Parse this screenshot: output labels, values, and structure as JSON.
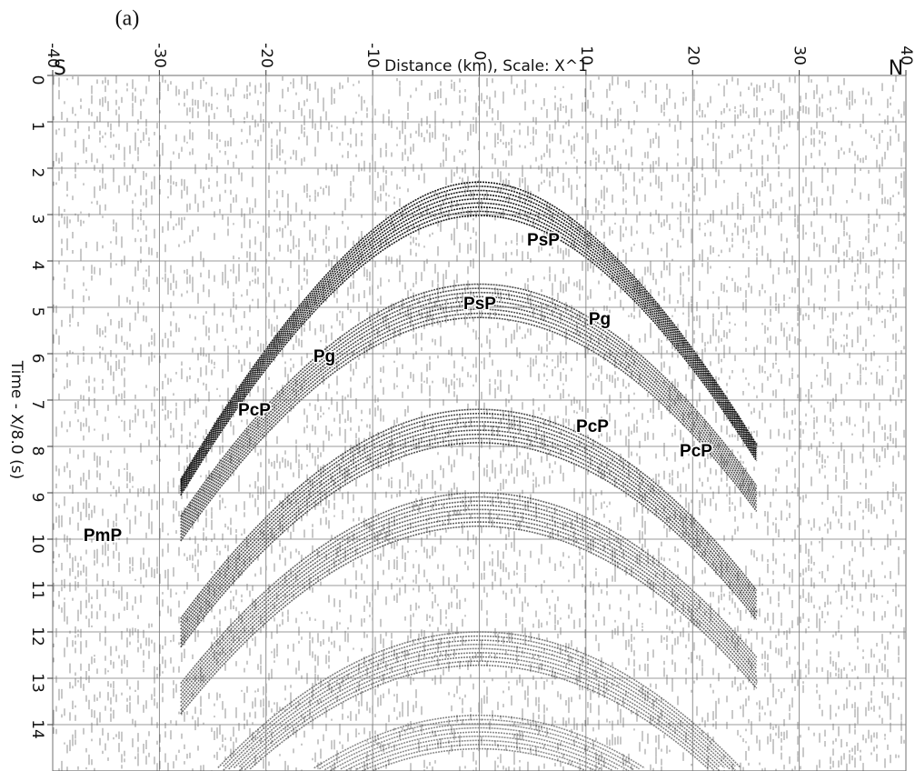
{
  "chart_data": {
    "type": "seismic-section",
    "panel_label": "(a)",
    "title": "Distance (km), Scale:   X^1",
    "left_label": "S",
    "right_label": "N",
    "y_label": "Time - X/8.0 (s)",
    "xlim": [
      -40,
      40
    ],
    "xticks": [
      -40,
      -30,
      -20,
      -10,
      0,
      10,
      20,
      30,
      40
    ],
    "ylim": [
      0,
      15
    ],
    "yticks": [
      0,
      1,
      2,
      3,
      4,
      5,
      6,
      7,
      8,
      9,
      10,
      11,
      12,
      13,
      14
    ],
    "grid": true,
    "annotations": [
      "PsP",
      "PsP",
      "Pg",
      "Pg",
      "PcP",
      "PcP",
      "PcP",
      "PmP"
    ]
  }
}
